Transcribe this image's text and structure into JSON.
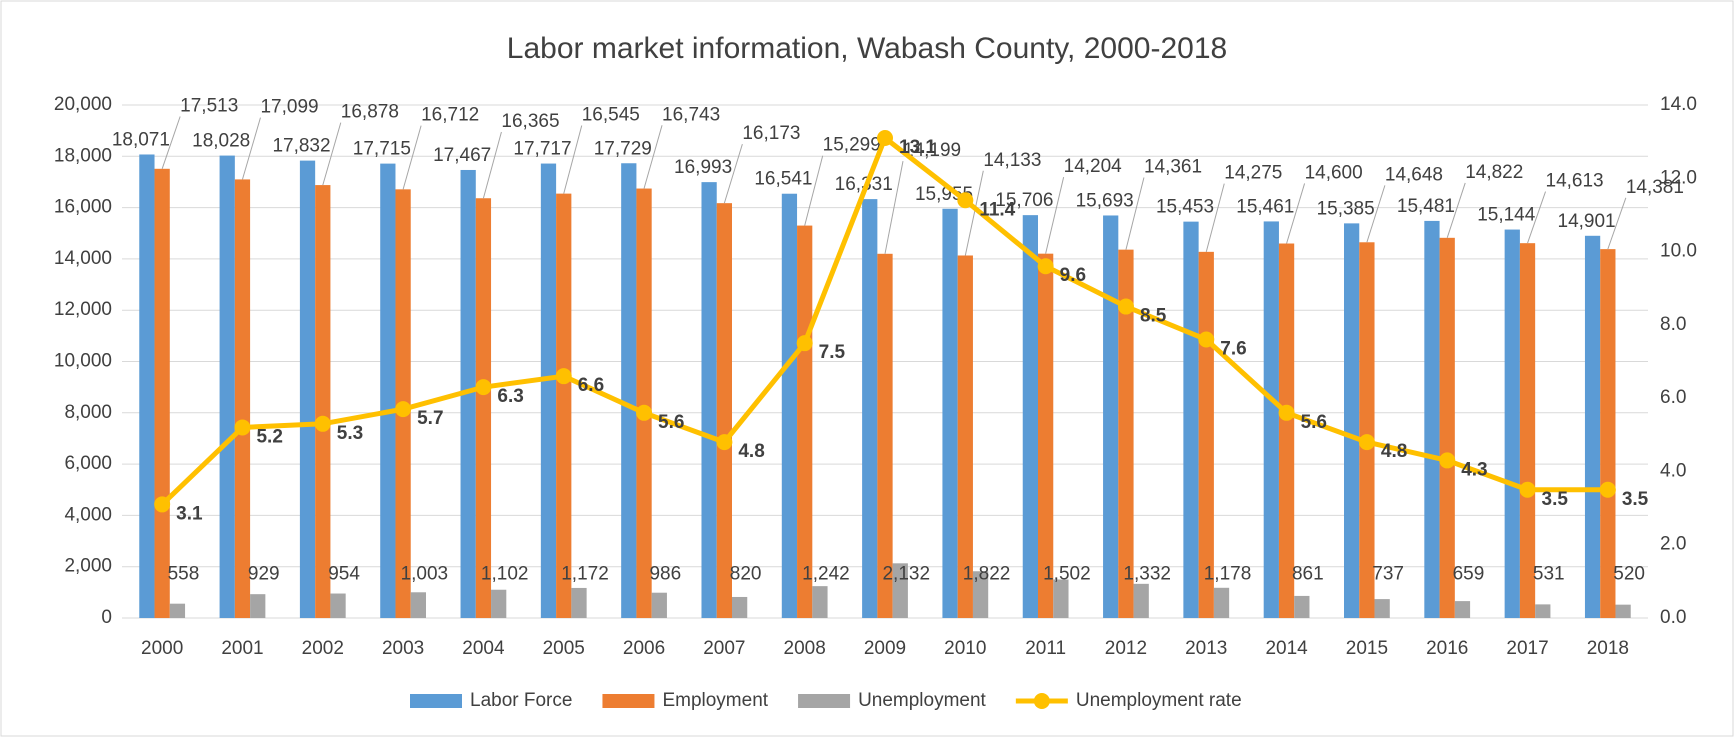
{
  "chart_data": {
    "type": "bar-line",
    "title": "Labor market information, Wabash County, 2000-2018",
    "categories": [
      "2000",
      "2001",
      "2002",
      "2003",
      "2004",
      "2005",
      "2006",
      "2007",
      "2008",
      "2009",
      "2010",
      "2011",
      "2012",
      "2013",
      "2014",
      "2015",
      "2016",
      "2017",
      "2018"
    ],
    "series": [
      {
        "name": "Labor Force",
        "type": "bar",
        "color": "#5b9bd5",
        "values": [
          18071,
          18028,
          17832,
          17715,
          17467,
          17717,
          17729,
          16993,
          16541,
          16331,
          15955,
          15706,
          15693,
          15453,
          15461,
          15385,
          15481,
          15144,
          14901
        ],
        "value_labels": [
          "18,071",
          "18,028",
          "17,832",
          "17,715",
          "17,467",
          "17,717",
          "17,729",
          "16,993",
          "16,541",
          "16,331",
          "15,955",
          "15,706",
          "15,693",
          "15,453",
          "15,461",
          "15,385",
          "15,481",
          "15,144",
          "14,901"
        ]
      },
      {
        "name": "Employment",
        "type": "bar",
        "color": "#ed7d31",
        "values": [
          17513,
          17099,
          16878,
          16712,
          16365,
          16545,
          16743,
          16173,
          15299,
          14199,
          14133,
          14204,
          14361,
          14275,
          14600,
          14648,
          14822,
          14613,
          14381
        ],
        "value_labels": [
          "17,513",
          "17,099",
          "16,878",
          "16,712",
          "16,365",
          "16,545",
          "16,743",
          "16,173",
          "15,299",
          "14,199",
          "14,133",
          "14,204",
          "14,361",
          "14,275",
          "14,600",
          "14,648",
          "14,822",
          "14,613",
          "14,381"
        ]
      },
      {
        "name": "Unemployment",
        "type": "bar",
        "color": "#a5a5a5",
        "values": [
          558,
          929,
          954,
          1003,
          1102,
          1172,
          986,
          820,
          1242,
          2132,
          1822,
          1502,
          1332,
          1178,
          861,
          737,
          659,
          531,
          520
        ],
        "value_labels": [
          "558",
          "929",
          "954",
          "1,003",
          "1,102",
          "1,172",
          "986",
          "820",
          "1,242",
          "2,132",
          "1,822",
          "1,502",
          "1,332",
          "1,178",
          "861",
          "737",
          "659",
          "531",
          "520"
        ]
      },
      {
        "name": "Unemployment rate",
        "type": "line",
        "axis": "y2",
        "color": "#ffc000",
        "values": [
          3.1,
          5.2,
          5.3,
          5.7,
          6.3,
          6.6,
          5.6,
          4.8,
          7.5,
          13.1,
          11.4,
          9.6,
          8.5,
          7.6,
          5.6,
          4.8,
          4.3,
          3.5,
          3.5
        ]
      }
    ],
    "ylim": [
      0,
      20000
    ],
    "yticks": [
      0,
      {
        "value": 2000,
        "label": "2,000"
      },
      {
        "value": 4000,
        "label": "4,000"
      },
      {
        "value": 6000,
        "label": "6,000"
      },
      {
        "value": 8000,
        "label": "8,000"
      },
      {
        "value": 10000,
        "label": "10,000"
      },
      {
        "value": 12000,
        "label": "12,000"
      },
      {
        "value": 14000,
        "label": "14,000"
      },
      {
        "value": 16000,
        "label": "16,000"
      },
      {
        "value": 18000,
        "label": "18,000"
      },
      {
        "value": 20000,
        "label": "20,000"
      }
    ],
    "y2lim": [
      0,
      14
    ],
    "y2ticks": [
      {
        "value": 0,
        "label": "0.0"
      },
      {
        "value": 2,
        "label": "2.0"
      },
      {
        "value": 4,
        "label": "4.0"
      },
      {
        "value": 6,
        "label": "6.0"
      },
      {
        "value": 8,
        "label": "8.0"
      },
      {
        "value": 10,
        "label": "10.0"
      },
      {
        "value": 12,
        "label": "12.0"
      },
      {
        "value": 14,
        "label": "14.0"
      }
    ],
    "grid": true,
    "legend": "bottom"
  }
}
